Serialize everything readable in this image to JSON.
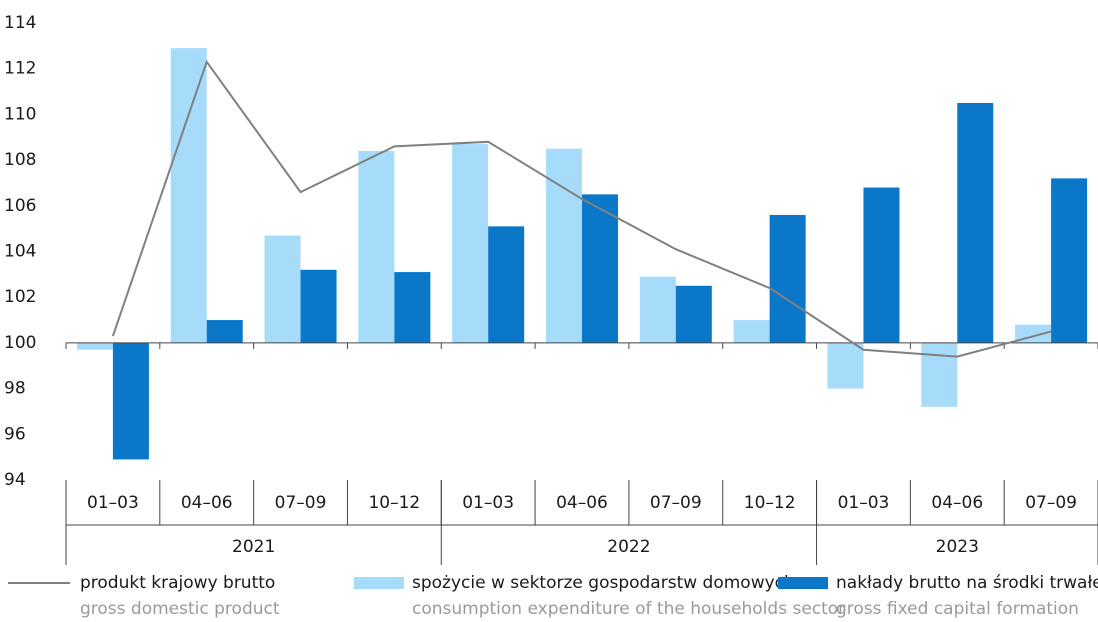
{
  "chart_data": {
    "type": "bar",
    "categories": [
      "01–03",
      "04–06",
      "07–09",
      "10–12",
      "01–03",
      "04–06",
      "07–09",
      "10–12",
      "01–03",
      "04–06",
      "07–09"
    ],
    "groups": [
      {
        "label": "2021",
        "span": 4
      },
      {
        "label": "2022",
        "span": 4
      },
      {
        "label": "2023",
        "span": 3
      }
    ],
    "baseline": 100,
    "series": [
      {
        "name": "produkt krajowy brutto",
        "name_en": "gross domestic product",
        "type": "line",
        "color": "#808080",
        "values": [
          100.3,
          112.3,
          106.6,
          108.6,
          108.8,
          106.3,
          104.1,
          102.4,
          99.7,
          99.4,
          100.5
        ]
      },
      {
        "name": "spożycie w sektorze gospodarstw domowych",
        "name_en": "consumption expenditure of the households sector",
        "type": "bar",
        "color": "#a6dcfa",
        "values": [
          99.7,
          112.9,
          104.7,
          108.4,
          108.7,
          108.5,
          102.9,
          101.0,
          98.0,
          97.2,
          100.8
        ]
      },
      {
        "name": "nakłady brutto na środki trwałe",
        "name_en": "gross fixed capital formation",
        "type": "bar",
        "color": "#0a77c8",
        "values": [
          94.9,
          101.0,
          103.2,
          103.1,
          105.1,
          106.5,
          102.5,
          105.6,
          106.8,
          110.5,
          107.2
        ]
      }
    ],
    "ylim": [
      94,
      114
    ],
    "yticks": [
      94,
      96,
      98,
      100,
      102,
      104,
      106,
      108,
      110,
      112,
      114
    ],
    "grid": false
  }
}
